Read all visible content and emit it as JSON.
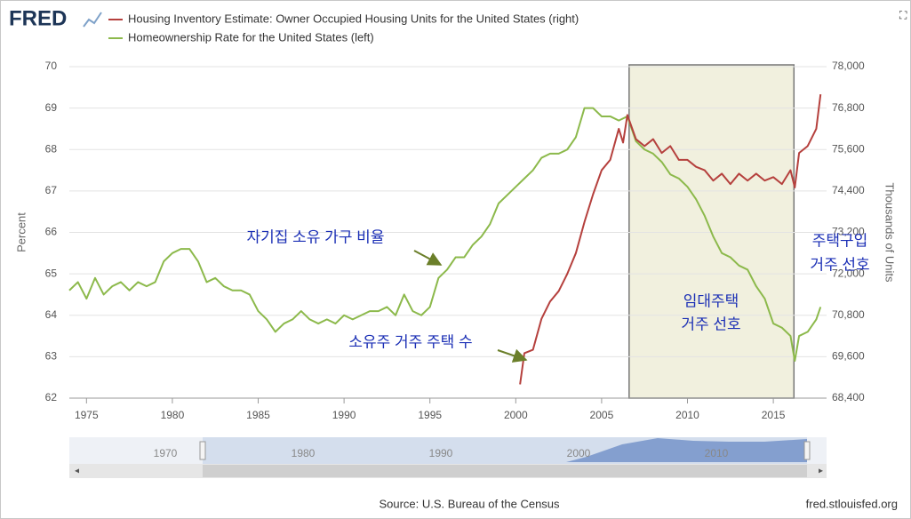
{
  "header": {
    "logo": "FRED"
  },
  "footer": {
    "source": "Source: U.S. Bureau of the Census",
    "url": "fred.stlouisfed.org"
  },
  "navigator": {
    "ticks": [
      1970,
      1980,
      1990,
      2000,
      2010
    ]
  },
  "chart_data": {
    "type": "line",
    "ylabel": "Percent",
    "y2label": "Thousands of Units",
    "xlim": [
      1974,
      2018.1
    ],
    "xticks": [
      1975,
      1980,
      1985,
      1990,
      1995,
      2000,
      2005,
      2010,
      2015
    ],
    "ylim": [
      62,
      70
    ],
    "yticks": [
      62,
      63,
      64,
      65,
      66,
      67,
      68,
      69,
      70
    ],
    "y2lim": [
      68400,
      78000
    ],
    "y2ticks": [
      {
        "value": 68400,
        "label": "68,400"
      },
      {
        "value": 69600,
        "label": "69,600"
      },
      {
        "value": 70800,
        "label": "70,800"
      },
      {
        "value": 72000,
        "label": "72,000"
      },
      {
        "value": 73200,
        "label": "73,200"
      },
      {
        "value": 74400,
        "label": "74,400"
      },
      {
        "value": 75600,
        "label": "75,600"
      },
      {
        "value": 76800,
        "label": "76,800"
      },
      {
        "value": 78000,
        "label": "78,000"
      }
    ],
    "grid": true,
    "shaded_region": [
      2006.6,
      2016.2
    ],
    "series": [
      {
        "name": "Homeownership Rate for the United States (left)",
        "color": "#8cb94b",
        "x": [
          1974,
          1974.5,
          1975,
          1975.5,
          1976,
          1976.5,
          1977,
          1977.5,
          1978,
          1978.5,
          1979,
          1979.5,
          1980,
          1980.5,
          1981,
          1981.5,
          1982,
          1982.5,
          1983,
          1983.5,
          1984,
          1984.5,
          1985,
          1985.5,
          1986,
          1986.5,
          1987,
          1987.5,
          1988,
          1988.5,
          1989,
          1989.5,
          1990,
          1990.5,
          1991,
          1991.5,
          1992,
          1992.5,
          1993,
          1993.5,
          1994,
          1994.5,
          1995,
          1995.5,
          1996,
          1996.5,
          1997,
          1997.5,
          1998,
          1998.5,
          1999,
          1999.5,
          2000,
          2000.5,
          2001,
          2001.5,
          2002,
          2002.5,
          2003,
          2003.5,
          2004,
          2004.5,
          2005,
          2005.5,
          2006,
          2006.5,
          2007,
          2007.5,
          2008,
          2008.5,
          2009,
          2009.5,
          2010,
          2010.5,
          2011,
          2011.5,
          2012,
          2012.5,
          2013,
          2013.5,
          2014,
          2014.5,
          2015,
          2015.5,
          2016,
          2016.25,
          2016.5,
          2017,
          2017.5,
          2017.75
        ],
        "values": [
          64.6,
          64.8,
          64.4,
          64.9,
          64.5,
          64.7,
          64.8,
          64.6,
          64.8,
          64.7,
          64.8,
          65.3,
          65.5,
          65.6,
          65.6,
          65.3,
          64.8,
          64.9,
          64.7,
          64.6,
          64.6,
          64.5,
          64.1,
          63.9,
          63.6,
          63.8,
          63.9,
          64.1,
          63.9,
          63.8,
          63.9,
          63.8,
          64.0,
          63.9,
          64.0,
          64.1,
          64.1,
          64.2,
          64.0,
          64.5,
          64.1,
          64.0,
          64.2,
          64.9,
          65.1,
          65.4,
          65.4,
          65.7,
          65.9,
          66.2,
          66.7,
          66.9,
          67.1,
          67.3,
          67.5,
          67.8,
          67.9,
          67.9,
          68.0,
          68.3,
          69.0,
          69.0,
          68.8,
          68.8,
          68.7,
          68.8,
          68.2,
          68.0,
          67.9,
          67.7,
          67.4,
          67.3,
          67.1,
          66.8,
          66.4,
          65.9,
          65.5,
          65.4,
          65.2,
          65.1,
          64.7,
          64.4,
          63.8,
          63.7,
          63.5,
          62.9,
          63.5,
          63.6,
          63.9,
          64.2
        ]
      },
      {
        "name": "Housing Inventory Estimate: Owner Occupied Housing Units for the United States (right)",
        "color": "#b5403d",
        "axis": "y2",
        "x": [
          2000.25,
          2000.5,
          2001,
          2001.5,
          2002,
          2002.5,
          2003,
          2003.5,
          2004,
          2004.5,
          2005,
          2005.5,
          2006,
          2006.25,
          2006.5,
          2007,
          2007.5,
          2008,
          2008.5,
          2009,
          2009.5,
          2010,
          2010.5,
          2011,
          2011.5,
          2012,
          2012.5,
          2013,
          2013.5,
          2014,
          2014.5,
          2015,
          2015.5,
          2016,
          2016.25,
          2016.5,
          2017,
          2017.5,
          2017.75
        ],
        "values": [
          68800,
          69700,
          69800,
          70700,
          71200,
          71500,
          72000,
          72600,
          73500,
          74300,
          75000,
          75300,
          76200,
          75800,
          76600,
          75900,
          75700,
          75900,
          75500,
          75700,
          75300,
          75300,
          75100,
          75000,
          74700,
          74900,
          74600,
          74900,
          74700,
          74900,
          74700,
          74800,
          74600,
          75000,
          74500,
          75500,
          75700,
          76200,
          77200
        ]
      }
    ],
    "annotations": [
      "자기집 소유 가구 비율",
      "소유주 거주 주택 수",
      "주택구입",
      "거주 선호",
      "임대주택",
      "거주 선호"
    ]
  }
}
